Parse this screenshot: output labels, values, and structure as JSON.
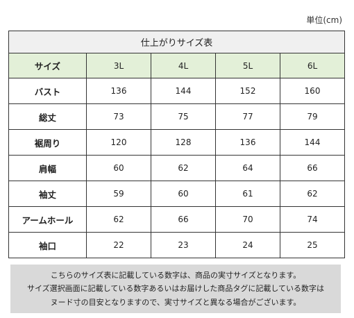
{
  "unit_label": "単位(cm)",
  "table": {
    "title": "仕上がりサイズ表",
    "header": [
      "サイズ",
      "3L",
      "4L",
      "5L",
      "6L"
    ],
    "rows": [
      {
        "label": "バスト",
        "values": [
          "136",
          "144",
          "152",
          "160"
        ]
      },
      {
        "label": "総丈",
        "values": [
          "73",
          "75",
          "77",
          "79"
        ]
      },
      {
        "label": "裾周り",
        "values": [
          "120",
          "128",
          "136",
          "144"
        ]
      },
      {
        "label": "肩幅",
        "values": [
          "60",
          "62",
          "64",
          "66"
        ]
      },
      {
        "label": "袖丈",
        "values": [
          "59",
          "60",
          "61",
          "62"
        ]
      },
      {
        "label": "アームホール",
        "values": [
          "62",
          "66",
          "70",
          "74"
        ]
      },
      {
        "label": "袖口",
        "values": [
          "22",
          "23",
          "24",
          "25"
        ]
      }
    ]
  },
  "note": {
    "lines": [
      "こちらのサイズ表に記載している数字は、商品の実寸サイズとなります。",
      "サイズ選択画面に記載している数字あるいはお届けした商品タグに記載している数字は",
      "ヌード寸の目安となりますので、実寸サイズと異なる場合がございます。"
    ]
  }
}
